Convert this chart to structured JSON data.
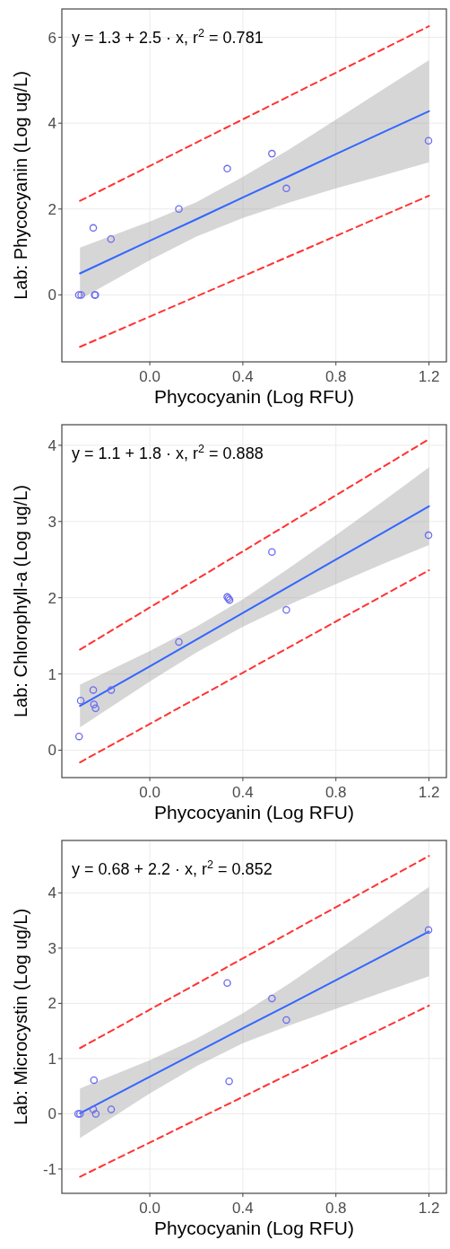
{
  "chart_data": [
    {
      "type": "scatter",
      "annotations": [
        "y = 1.3 + 2.5 · x,  r$^{2}$ = 0.781"
      ],
      "xlabel": "Phycocyanin (Log RFU)",
      "ylabel": "Lab: Phycocyanin (Log ug/L)",
      "xlim": [
        -0.378,
        1.275
      ],
      "xticks": [
        {
          "value": 0,
          "label": "0.0"
        },
        {
          "value": 0.4,
          "label": "0.4"
        },
        {
          "value": 0.8,
          "label": "0.8"
        },
        {
          "value": 1.2,
          "label": "1.2"
        }
      ],
      "ylim": [
        -1.56,
        6.66
      ],
      "yticks": [
        0,
        2,
        4,
        6
      ],
      "grid": true,
      "series": [
        {
          "type": "line",
          "color": "#3366ff",
          "x": [
            -0.3,
            0,
            0.2,
            0.4,
            0.6,
            0.8,
            1.0,
            1.2
          ],
          "values": [
            0.5,
            1.26,
            1.76,
            2.27,
            2.77,
            3.28,
            3.78,
            4.28
          ],
          "lower": [
            -0.1,
            0.81,
            1.36,
            1.79,
            2.15,
            2.48,
            2.78,
            3.09
          ],
          "upper": [
            1.1,
            1.71,
            2.16,
            2.75,
            3.39,
            4.08,
            4.78,
            5.47
          ]
        },
        {
          "type": "line",
          "color": "#ff3333",
          "line_style": "dashed",
          "x": [
            -0.3,
            1.2
          ],
          "values": [
            2.19,
            6.26
          ]
        },
        {
          "type": "line",
          "color": "#ff3333",
          "line_style": "dashed",
          "x": [
            -0.3,
            1.2
          ],
          "values": [
            -1.21,
            2.31
          ]
        },
        {
          "color": "#6b6bf0",
          "marker": "circle",
          "x": [
            -0.305,
            -0.295,
            -0.243,
            -0.237,
            -0.234,
            -0.167,
            0.125,
            0.333,
            0.525,
            0.587,
            1.198
          ],
          "values": [
            0,
            0,
            1.56,
            0,
            0,
            1.3,
            2.0,
            2.94,
            3.29,
            2.48,
            3.59
          ]
        }
      ]
    },
    {
      "type": "scatter",
      "annotations": [
        "y = 1.1 + 1.8 · x,  r$^{2}$ = 0.888"
      ],
      "xlabel": "Phycocyanin (Log RFU)",
      "ylabel": "Lab: Chlorophyll-a (Log ug/L)",
      "xlim": [
        -0.378,
        1.275
      ],
      "xticks": [
        {
          "value": 0,
          "label": "0.0"
        },
        {
          "value": 0.4,
          "label": "0.4"
        },
        {
          "value": 0.8,
          "label": "0.8"
        },
        {
          "value": 1.2,
          "label": "1.2"
        }
      ],
      "ylim": [
        -0.36,
        4.27
      ],
      "yticks": [
        0,
        1,
        2,
        3,
        4
      ],
      "grid": true,
      "series": [
        {
          "type": "line",
          "color": "#3366ff",
          "x": [
            -0.3,
            0,
            0.2,
            0.4,
            0.6,
            0.8,
            1.0,
            1.2
          ],
          "values": [
            0.58,
            1.1,
            1.45,
            1.8,
            2.15,
            2.5,
            2.85,
            3.2
          ],
          "lower": [
            0.3,
            0.9,
            1.28,
            1.62,
            1.91,
            2.18,
            2.44,
            2.69
          ],
          "upper": [
            0.86,
            1.3,
            1.62,
            1.98,
            2.39,
            2.82,
            3.26,
            3.71
          ]
        },
        {
          "type": "line",
          "color": "#ff3333",
          "line_style": "dashed",
          "x": [
            -0.3,
            1.2
          ],
          "values": [
            1.32,
            4.08
          ]
        },
        {
          "type": "line",
          "color": "#ff3333",
          "line_style": "dashed",
          "x": [
            -0.3,
            1.2
          ],
          "values": [
            -0.16,
            2.36
          ]
        },
        {
          "color": "#6b6bf0",
          "marker": "circle",
          "x": [
            -0.304,
            -0.297,
            -0.243,
            -0.24,
            -0.233,
            -0.166,
            0.125,
            0.333,
            0.338,
            0.343,
            0.525,
            0.587,
            1.198
          ],
          "values": [
            0.18,
            0.65,
            0.79,
            0.6,
            0.55,
            0.79,
            1.42,
            2.01,
            1.99,
            1.97,
            2.6,
            1.84,
            2.82
          ]
        }
      ]
    },
    {
      "type": "scatter",
      "annotations": [
        "y = 0.68 + 2.2 · x,  r$^{2}$ = 0.852"
      ],
      "xlabel": "Phycocyanin (Log RFU)",
      "ylabel": "Lab: Microcystin (Log ug/L)",
      "xlim": [
        -0.378,
        1.275
      ],
      "xticks": [
        {
          "value": 0,
          "label": "0.0"
        },
        {
          "value": 0.4,
          "label": "0.4"
        },
        {
          "value": 0.8,
          "label": "0.8"
        },
        {
          "value": 1.2,
          "label": "1.2"
        }
      ],
      "ylim": [
        -1.44,
        4.95
      ],
      "yticks": [
        -1,
        0,
        1,
        2,
        3,
        4
      ],
      "grid": true,
      "series": [
        {
          "type": "line",
          "color": "#3366ff",
          "x": [
            -0.3,
            0,
            0.2,
            0.4,
            0.6,
            0.8,
            1.0,
            1.2
          ],
          "values": [
            0.01,
            0.67,
            1.11,
            1.55,
            1.98,
            2.42,
            2.86,
            3.3
          ],
          "lower": [
            -0.44,
            0.37,
            0.86,
            1.28,
            1.6,
            1.9,
            2.2,
            2.49
          ],
          "upper": [
            0.46,
            0.97,
            1.36,
            1.82,
            2.36,
            2.94,
            3.52,
            4.11
          ]
        },
        {
          "type": "line",
          "color": "#ff3333",
          "line_style": "dashed",
          "x": [
            -0.3,
            1.2
          ],
          "values": [
            1.19,
            4.67
          ]
        },
        {
          "type": "line",
          "color": "#ff3333",
          "line_style": "dashed",
          "x": [
            -0.3,
            1.2
          ],
          "values": [
            -1.14,
            1.96
          ]
        },
        {
          "color": "#6b6bf0",
          "marker": "circle",
          "x": [
            -0.308,
            -0.3,
            -0.24,
            -0.243,
            -0.232,
            -0.166,
            0.333,
            0.341,
            0.525,
            0.587,
            1.198
          ],
          "values": [
            0,
            0,
            0.61,
            0.08,
            0,
            0.08,
            2.37,
            0.59,
            2.09,
            1.7,
            3.33
          ]
        }
      ]
    }
  ]
}
